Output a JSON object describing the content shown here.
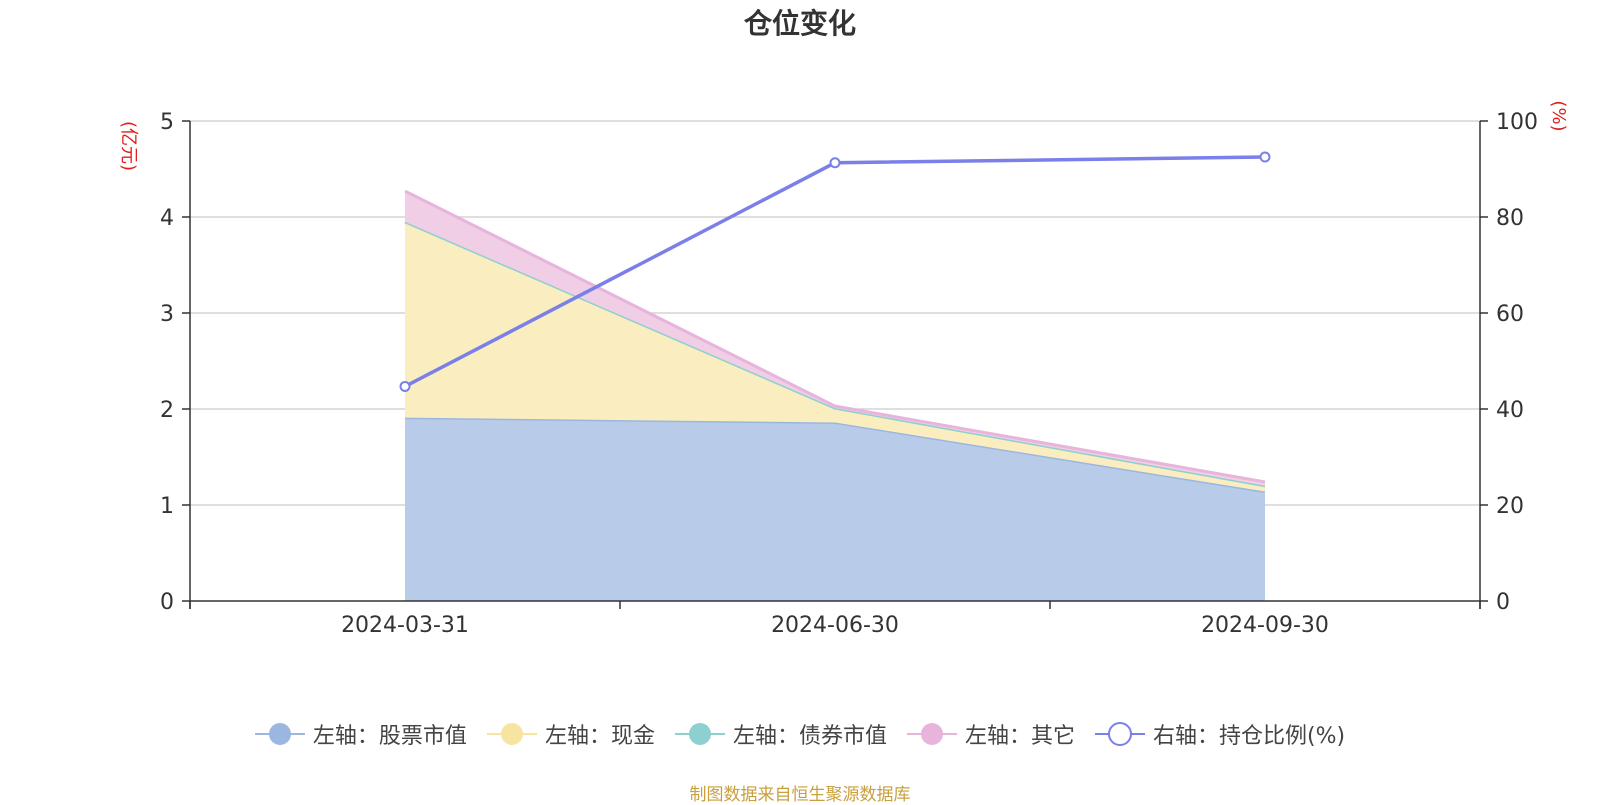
{
  "chart_data": {
    "type": "area",
    "title": "仓位变化",
    "categories": [
      "2024-03-31",
      "2024-06-30",
      "2024-09-30"
    ],
    "left_axis": {
      "label": "亿元",
      "ylim": [
        0,
        5
      ],
      "ticks": [
        0,
        1,
        2,
        3,
        4,
        5
      ]
    },
    "right_axis": {
      "label": "%",
      "ylim": [
        0,
        100
      ],
      "ticks": [
        0,
        20,
        40,
        60,
        80,
        100
      ]
    },
    "stacked": true,
    "grid": true,
    "legend_position": "bottom",
    "series": [
      {
        "name": "左轴：股票市值",
        "axis": "left",
        "type": "area",
        "values": [
          1.91,
          1.86,
          1.14
        ],
        "color": "#9bb7e0",
        "fill": "#b8cbe8"
      },
      {
        "name": "左轴：现金",
        "axis": "left",
        "type": "area",
        "values": [
          2.04,
          0.15,
          0.06
        ],
        "color": "#f7e4a0",
        "fill": "#faeec0"
      },
      {
        "name": "左轴：债券市值",
        "axis": "left",
        "type": "area",
        "values": [
          0.0,
          0.0,
          0.0
        ],
        "color": "#8ed0d0",
        "fill": "#b3e0e0"
      },
      {
        "name": "左轴：其它",
        "axis": "left",
        "type": "area",
        "values": [
          0.32,
          0.02,
          0.04
        ],
        "color": "#e7b5db",
        "fill": "#efcee6"
      },
      {
        "name": "右轴：持仓比例(%)",
        "axis": "right",
        "type": "line",
        "values": [
          44.7,
          91.3,
          92.5
        ],
        "color": "#7b7fe8"
      }
    ]
  },
  "source_note": "制图数据来自恒生聚源数据库"
}
